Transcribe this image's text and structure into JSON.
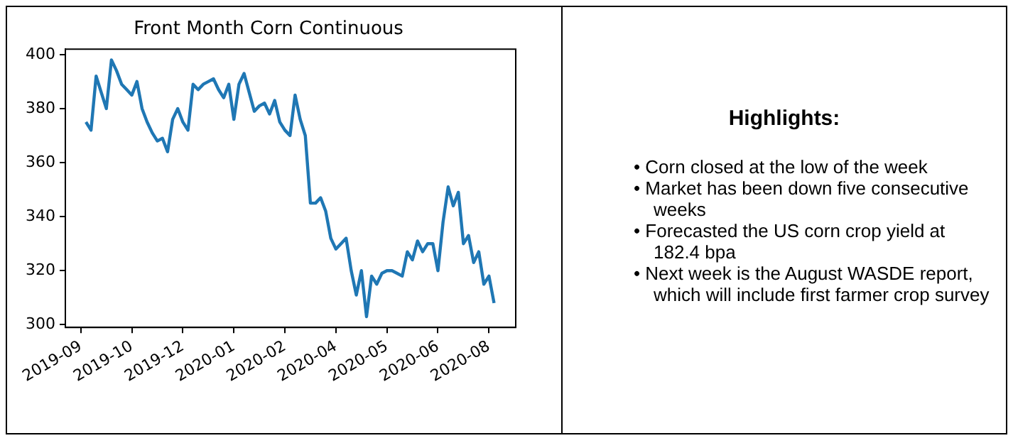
{
  "chart_data": [
    {
      "type": "line",
      "title": "Front Month Corn Continuous",
      "categories": [
        "2019-09",
        null,
        null,
        null,
        null,
        null,
        null,
        null,
        null,
        null,
        "2019-10",
        null,
        null,
        null,
        null,
        null,
        null,
        null,
        null,
        null,
        "2019-12",
        null,
        null,
        null,
        null,
        null,
        null,
        null,
        null,
        null,
        "2020-01",
        null,
        null,
        null,
        null,
        null,
        null,
        null,
        null,
        null,
        "2020-02",
        null,
        null,
        null,
        null,
        null,
        null,
        null,
        null,
        null,
        "2020-04",
        null,
        null,
        null,
        null,
        null,
        null,
        null,
        null,
        null,
        "2020-05",
        null,
        null,
        null,
        null,
        null,
        null,
        null,
        null,
        null,
        "2020-06",
        null,
        null,
        null,
        null,
        null,
        null,
        null,
        null,
        null,
        "2020-08",
        null
      ],
      "series": [
        {
          "color": "#1f77b4",
          "values": [
            null,
            375,
            372,
            392,
            386,
            380,
            398,
            394,
            389,
            387,
            385,
            390,
            380,
            375,
            371,
            368,
            369,
            364,
            376,
            380,
            375,
            372,
            389,
            387,
            389,
            390,
            391,
            387,
            384,
            389,
            376,
            389,
            393,
            386,
            379,
            381,
            382,
            378,
            383,
            375,
            372,
            370,
            385,
            376,
            370,
            345,
            345,
            347,
            342,
            332,
            328,
            330,
            332,
            320,
            311,
            320,
            303,
            318,
            315,
            319,
            320,
            320,
            319,
            318,
            327,
            324,
            331,
            327,
            330,
            330,
            320,
            338,
            351,
            344,
            349,
            330,
            333,
            323,
            327,
            315,
            318,
            308
          ]
        }
      ],
      "ylim": [
        299,
        402
      ],
      "yticks": [
        300,
        320,
        340,
        360,
        380,
        400
      ],
      "grid": false,
      "legend": false
    },
    {
      "type": "other",
      "title": "Highlights:",
      "annotations": [
        "•  Corn closed at the low of the week",
        "•  Market has been down five consecutive weeks",
        "•  Forecasted the US corn crop yield at 182.4 bpa",
        "•  Next week is the August WASDE report, which will include first farmer crop survey"
      ]
    }
  ]
}
